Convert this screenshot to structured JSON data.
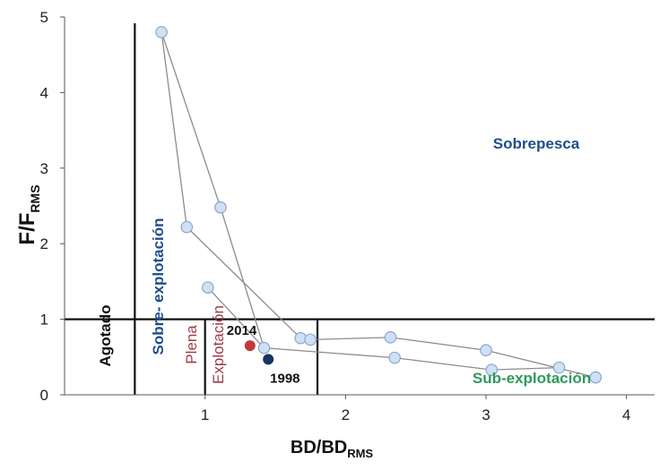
{
  "chart_data": {
    "type": "scatter",
    "xlabel": {
      "main": "BD/BD",
      "sub": "RMS"
    },
    "ylabel": {
      "main": "F/F",
      "sub": "RMS"
    },
    "xlim": [
      0,
      4.2
    ],
    "ylim": [
      0,
      5
    ],
    "xticks": [
      "1",
      "2",
      "3",
      "4"
    ],
    "xtick_values": [
      1,
      2,
      3,
      4
    ],
    "yticks": [
      "0",
      "1",
      "2",
      "3",
      "4",
      "5"
    ],
    "ytick_values": [
      0,
      1,
      2,
      3,
      4,
      5
    ],
    "series": [
      {
        "marker_color": "#cfe0f5",
        "marker_edge": "#8aa6cc",
        "line_color": "#8c8c8c",
        "points": [
          [
            0.69,
            4.8
          ],
          [
            0.87,
            2.22
          ],
          [
            1.11,
            2.48
          ],
          [
            1.42,
            0.62
          ],
          [
            1.68,
            0.75
          ],
          [
            1.75,
            0.73
          ],
          [
            2.32,
            0.76
          ],
          [
            2.35,
            0.49
          ],
          [
            3.0,
            0.59
          ],
          [
            3.04,
            0.33
          ],
          [
            3.52,
            0.36
          ],
          [
            3.78,
            0.23
          ]
        ],
        "connector_paths": [
          [
            0,
            1,
            4,
            5,
            6,
            8,
            11
          ],
          [
            0,
            2,
            3,
            7,
            9,
            10
          ]
        ],
        "extra_point": [
          1.02,
          1.42
        ],
        "extra_segment": [
          1.02,
          1.42,
          1.42,
          0.62
        ]
      }
    ],
    "highlighted_points": [
      {
        "label": "2014",
        "x": 1.32,
        "y": 0.65,
        "color": "#c0393b"
      },
      {
        "label": "1998",
        "x": 1.45,
        "y": 0.47,
        "color": "#16355e"
      }
    ],
    "reference_lines": {
      "horizontal_y": 1,
      "vertical_full": 0.5,
      "vertical_short": [
        1.0,
        1.8
      ]
    },
    "zones": [
      {
        "name": "Sobrepesca",
        "color": "#1f4e8c"
      },
      {
        "name": "Agotado",
        "color": "#111111"
      },
      {
        "name": "Sobre- explotación",
        "color": "#1f4e8c"
      },
      {
        "name": "Plena",
        "color": "#a13b48"
      },
      {
        "name": "Explotación",
        "color": "#a13b48"
      },
      {
        "name": "Sub-explotación",
        "color": "#2f9a5a"
      }
    ],
    "grid": false
  }
}
